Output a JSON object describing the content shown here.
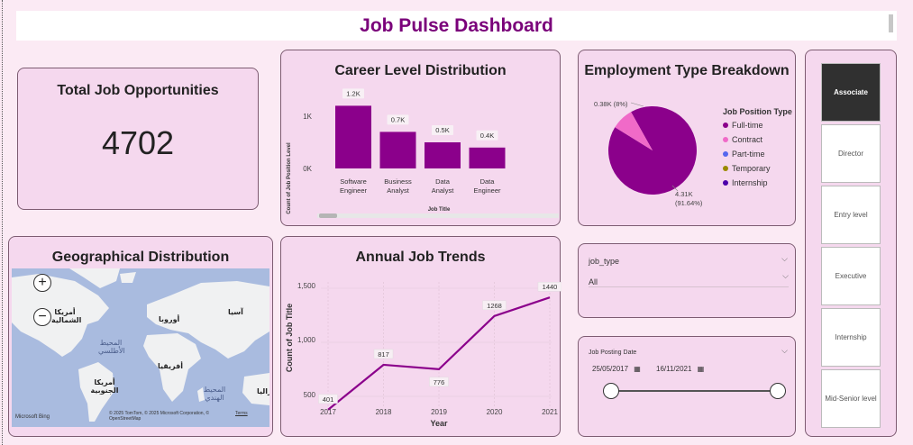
{
  "dashboard": {
    "title": "Job Pulse Dashboard"
  },
  "kpi": {
    "title": "Total Job Opportunities",
    "value": "4702"
  },
  "career": {
    "title": "Career Level Distribution",
    "ylabel": "Count of Job Position Level",
    "xlabel": "Job Title",
    "ticks": [
      "1K",
      "0K"
    ],
    "categories": [
      [
        "Software",
        "Engineer"
      ],
      [
        "Business",
        "Analyst"
      ],
      [
        "Data",
        "Analyst"
      ],
      [
        "Data",
        "Engineer"
      ]
    ],
    "labels": [
      "1.2K",
      "0.7K",
      "0.5K",
      "0.4K"
    ]
  },
  "employment": {
    "title": "Employment Type Breakdown",
    "legend_title": "Job Position Type",
    "legend": [
      "Full-time",
      "Contract",
      "Part-time",
      "Temporary",
      "Internship"
    ],
    "legend_colors": [
      "#8b008b",
      "#f06ac8",
      "#5566ee",
      "#9a8a00",
      "#4b00aa"
    ],
    "label_small": "0.38K (8%)",
    "label_big_1": "4.31K",
    "label_big_2": "(91.64%)"
  },
  "geo": {
    "title": "Geographical Distribution",
    "labels": {
      "north_america": "أمريكا الشمالية",
      "europe": "أوروبا",
      "asia": "آسيا",
      "africa": "أفريقيا",
      "south_america": "أمريكا الجنوبية",
      "australia": "أستراليا",
      "atlantic": "المحيط الأطلسي",
      "indian": "المحيط الهندي"
    },
    "attribution": "© 2025 TomTom, © 2025 Microsoft Corporation, © OpenStreetMap",
    "terms": "Terms",
    "brand": "Microsoft Bing"
  },
  "trends": {
    "title": "Annual Job Trends",
    "ylabel": "Count of Job Title",
    "xlabel": "Year",
    "ticks": [
      "1,500",
      "1,000",
      "500"
    ],
    "years": [
      "2017",
      "2018",
      "2019",
      "2020",
      "2021"
    ],
    "labels": [
      "401",
      "817",
      "776",
      "1268",
      "1440"
    ]
  },
  "job_type_slicer": {
    "title": "job_type",
    "value": "All"
  },
  "date_slicer": {
    "title": "Job Posting Date",
    "start": "25/05/2017",
    "end": "16/11/2021"
  },
  "level_slicer": {
    "items": [
      "Associate",
      "Director",
      "Entry level",
      "Executive",
      "Internship",
      "Mid-Senior level"
    ],
    "selected": "Associate"
  },
  "chart_data": [
    {
      "type": "bar",
      "title": "Career Level Distribution",
      "xlabel": "Job Title",
      "ylabel": "Count of Job Position Level",
      "categories": [
        "Software Engineer",
        "Business Analyst",
        "Data Analyst",
        "Data Engineer"
      ],
      "values": [
        1200,
        700,
        500,
        400
      ],
      "color": "#8b008b",
      "ylim": [
        0,
        1300
      ]
    },
    {
      "type": "pie",
      "title": "Employment Type Breakdown",
      "legend": "right",
      "categories": [
        "Full-time",
        "Contract",
        "Part-time",
        "Temporary",
        "Internship"
      ],
      "values": [
        4310,
        380,
        0,
        0,
        0
      ],
      "colors": [
        "#8b008b",
        "#f06ac8",
        "#5566ee",
        "#9a8a00",
        "#4b00aa"
      ]
    },
    {
      "type": "line",
      "title": "Annual Job Trends",
      "xlabel": "Year",
      "ylabel": "Count of Job Title",
      "x": [
        2017,
        2018,
        2019,
        2020,
        2021
      ],
      "values": [
        401,
        817,
        776,
        1268,
        1440
      ],
      "color": "#8b008b",
      "ylim": [
        400,
        1600
      ]
    }
  ]
}
